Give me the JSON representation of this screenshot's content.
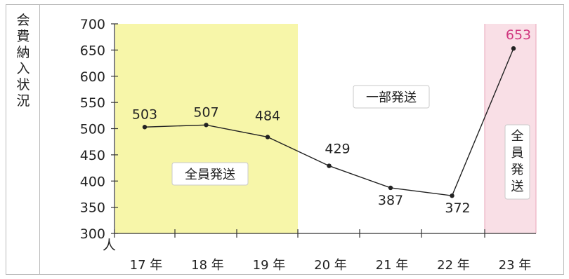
{
  "ylabel": "会費納入状況",
  "unit": "人",
  "colors": {
    "yellow_band": "#f7f6a9",
    "pink_band": "#f9dfe6",
    "pink_border": "#e9a6b9",
    "highlight_text": "#d0377f",
    "line": "#222222",
    "axis": "#333333"
  },
  "chart_data": {
    "type": "line",
    "title": "",
    "xlabel": "",
    "ylabel": "会費納入状況",
    "categories": [
      "17 年",
      "18 年",
      "19 年",
      "20 年",
      "21 年",
      "22 年",
      "23 年"
    ],
    "values": [
      503,
      507,
      484,
      429,
      387,
      372,
      653
    ],
    "ylim": [
      300,
      700
    ],
    "yticks": [
      300,
      350,
      400,
      450,
      500,
      550,
      600,
      650,
      700
    ],
    "grid": false,
    "highlight_index": 6,
    "regions": [
      {
        "label": "全員発送",
        "color": "yellow",
        "from": "17 年",
        "to": "19 年"
      },
      {
        "label": "一部発送",
        "color": "white",
        "from": "20 年",
        "to": "22 年"
      },
      {
        "label": "全員発送",
        "color": "pink",
        "from": "23 年",
        "to": "23 年"
      }
    ]
  }
}
